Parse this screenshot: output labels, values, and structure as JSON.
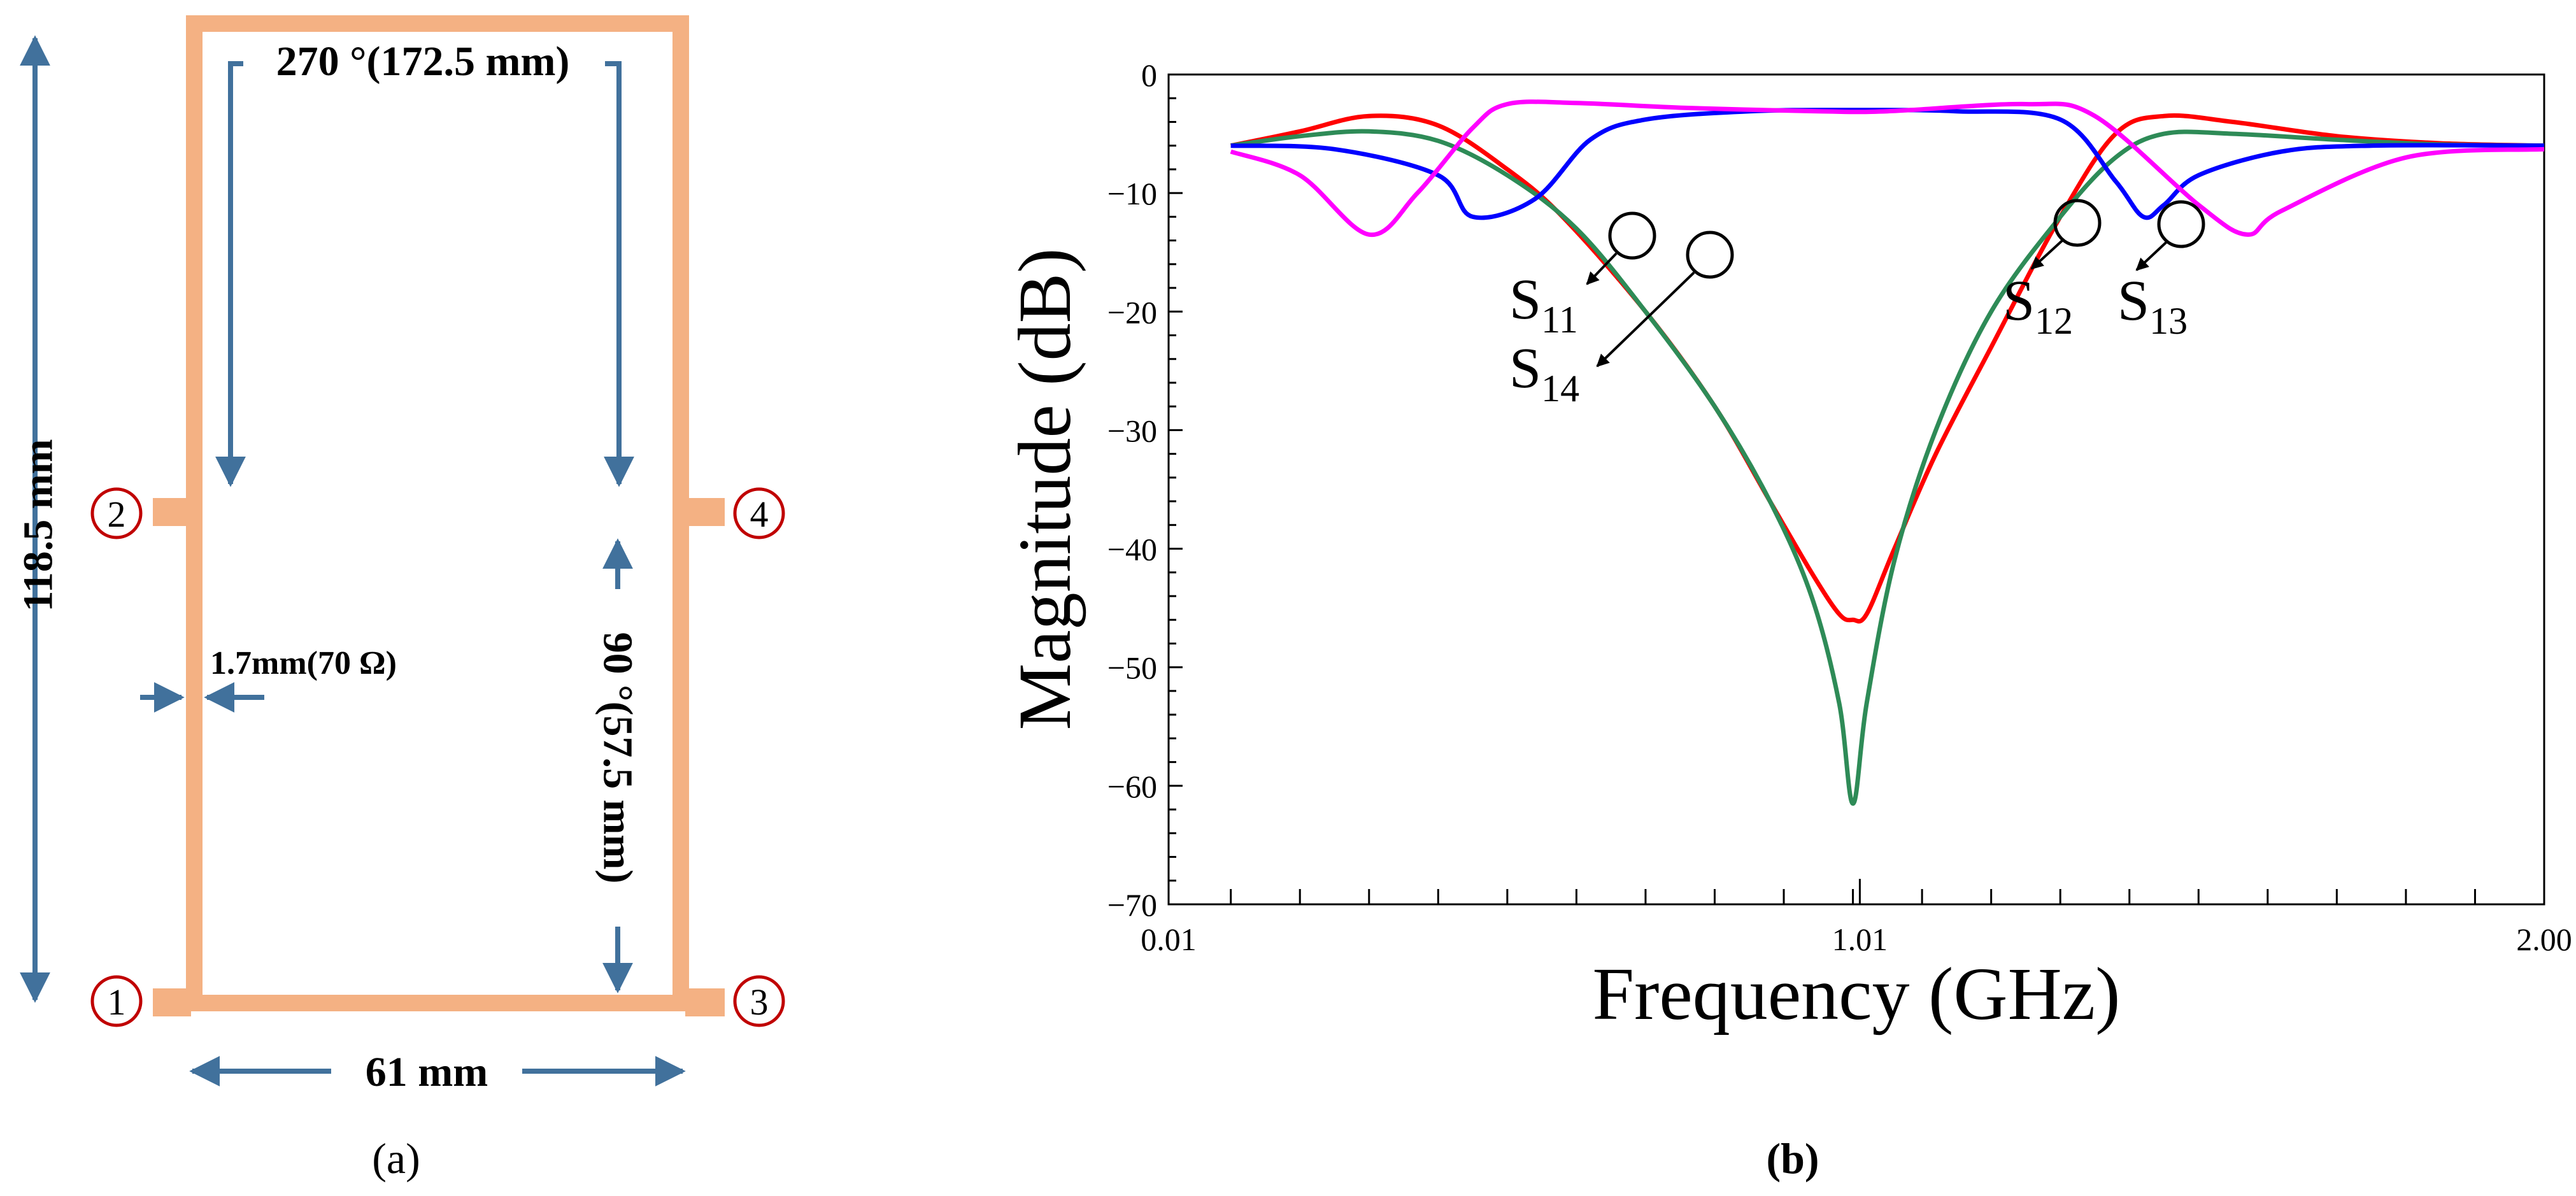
{
  "panel_a": {
    "caption": "(a)",
    "dims": {
      "height": "118.5  mm",
      "width": "61  mm",
      "top_line": "270 °(172.5 mm)",
      "right_line": "90 °(57.5 mm)",
      "line_width": "1.7mm(70 Ω)"
    },
    "ports": [
      "1",
      "2",
      "3",
      "4"
    ],
    "colors": {
      "trace": "#F4B183",
      "arrow": "#41719C",
      "port_circle": "#C00000"
    }
  },
  "panel_b": {
    "caption": "(b)",
    "labels": {
      "s11": {
        "base": "S",
        "sub": "11"
      },
      "s12": {
        "base": "S",
        "sub": "12"
      },
      "s13": {
        "base": "S",
        "sub": "13"
      },
      "s14": {
        "base": "S",
        "sub": "14"
      }
    }
  },
  "chart_data": {
    "type": "line",
    "title": "",
    "xlabel": "Frequency (GHz)",
    "ylabel": "Magnitude (dB)",
    "xlim": [
      0.01,
      2.0
    ],
    "ylim": [
      -70,
      0
    ],
    "x_ticks": [
      "0.01",
      "1.01",
      "2.00"
    ],
    "y_ticks": [
      "0",
      "−10",
      "−20",
      "−30",
      "−40",
      "−50",
      "−60",
      "−70"
    ],
    "series": [
      {
        "name": "S11",
        "color": "#FF0000",
        "x": [
          0.1,
          0.2,
          0.3,
          0.4,
          0.5,
          0.58,
          0.7,
          0.8,
          0.88,
          0.94,
          0.98,
          1.0,
          1.02,
          1.06,
          1.12,
          1.2,
          1.3,
          1.38,
          1.45,
          1.55,
          1.7,
          1.85,
          2.0
        ],
        "y": [
          -6,
          -4.8,
          -3.5,
          -4.3,
          -8,
          -12,
          -20,
          -28,
          -36,
          -42,
          -45.5,
          -46,
          -45.5,
          -40,
          -32,
          -23,
          -12,
          -5,
          -3.5,
          -4,
          -5.2,
          -5.8,
          -6
        ]
      },
      {
        "name": "S14",
        "color": "#2E8B57",
        "x": [
          0.1,
          0.2,
          0.3,
          0.4,
          0.5,
          0.6,
          0.7,
          0.8,
          0.88,
          0.94,
          0.98,
          1.0,
          1.02,
          1.06,
          1.12,
          1.2,
          1.3,
          1.38,
          1.45,
          1.55,
          1.7,
          1.85,
          2.0
        ],
        "y": [
          -6,
          -5.2,
          -4.8,
          -5.6,
          -8.5,
          -13,
          -20,
          -28,
          -36,
          -44,
          -53,
          -61.5,
          -53,
          -41,
          -30,
          -20,
          -12,
          -7,
          -5,
          -5,
          -5.5,
          -5.9,
          -6
        ]
      },
      {
        "name": "S12",
        "color": "#0000FF",
        "x": [
          0.1,
          0.25,
          0.4,
          0.45,
          0.54,
          0.62,
          0.7,
          0.85,
          1.0,
          1.15,
          1.3,
          1.38,
          1.42,
          1.45,
          1.5,
          1.62,
          1.75,
          2.0
        ],
        "y": [
          -6,
          -6.3,
          -8.5,
          -12,
          -10.5,
          -5.5,
          -3.8,
          -3.1,
          -3,
          -3.1,
          -3.8,
          -9,
          -12,
          -11,
          -8.5,
          -6.5,
          -6,
          -6
        ]
      },
      {
        "name": "S13",
        "color": "#FF00FF",
        "x": [
          0.1,
          0.2,
          0.3,
          0.37,
          0.45,
          0.5,
          0.6,
          0.75,
          0.95,
          1.05,
          1.25,
          1.35,
          1.5,
          1.57,
          1.62,
          1.8,
          2.0
        ],
        "y": [
          -6.5,
          -8.5,
          -13.5,
          -10,
          -4.5,
          -2.5,
          -2.4,
          -2.8,
          -3.1,
          -3.1,
          -2.5,
          -3.5,
          -11,
          -13.5,
          -11.5,
          -7,
          -6.3
        ]
      }
    ]
  }
}
